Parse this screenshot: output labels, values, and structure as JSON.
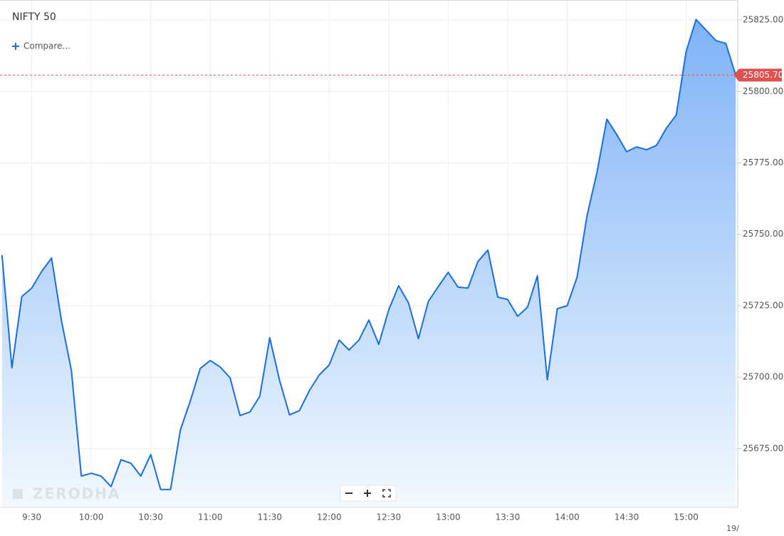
{
  "chart_data": {
    "type": "line",
    "title": "NIFTY 50",
    "compare_label": "Compare...",
    "watermark": "ZERODHA",
    "date_label": "19/",
    "series": [
      {
        "name": "NIFTY 50",
        "color": "#1a6fdb",
        "x": [
          555,
          560,
          565,
          570,
          575,
          580,
          585,
          590,
          595,
          600,
          605,
          610,
          615,
          620,
          625,
          630,
          635,
          640,
          645,
          650,
          655,
          660,
          665,
          670,
          675,
          680,
          685,
          690,
          695,
          700,
          705,
          710,
          715,
          720,
          725,
          730,
          735,
          740,
          745,
          750,
          755,
          760,
          765,
          770,
          775,
          780,
          785,
          790,
          795,
          800,
          805,
          810,
          815,
          820,
          825,
          830,
          835,
          840,
          845,
          850,
          855,
          860,
          865,
          870,
          875,
          880,
          885,
          890,
          895,
          900,
          905,
          910,
          915,
          920,
          925
        ],
        "values": [
          25742.7,
          25703.3,
          25728.2,
          25731.2,
          25737.0,
          25741.7,
          25719.8,
          25702.3,
          25665.4,
          25666.4,
          25665.4,
          25661.7,
          25671.1,
          25669.9,
          25665.4,
          25672.9,
          25660.7,
          25660.7,
          25681.6,
          25691.8,
          25703.1,
          25705.8,
          25703.6,
          25699.8,
          25686.6,
          25687.8,
          25693.3,
          25713.8,
          25698.8,
          25686.8,
          25688.3,
          25695.3,
          25700.8,
          25704.3,
          25713.0,
          25709.5,
          25713.0,
          25720.0,
          25711.5,
          25723.5,
          25732.0,
          25726.0,
          25713.5,
          25726.5,
          25731.7,
          25736.7,
          25731.5,
          25731.2,
          25740.5,
          25744.5,
          25728.0,
          25727.2,
          25721.3,
          25724.5,
          25735.5,
          25699.1,
          25724.0,
          25725.0,
          25735.0,
          25756.4,
          25771.6,
          25790.3,
          25784.9,
          25778.9,
          25780.6,
          25779.6,
          25781.1,
          25787.1,
          25791.8,
          25814.0,
          25825.2,
          25821.5,
          25817.8,
          25816.8,
          25805.7
        ]
      }
    ],
    "last_price": {
      "value": 25805.7,
      "label": "25805.70"
    },
    "xlim": [
      554,
      926
    ],
    "xticks": [
      {
        "value": 570,
        "label": "9:30"
      },
      {
        "value": 600,
        "label": "10:00"
      },
      {
        "value": 630,
        "label": "10:30"
      },
      {
        "value": 660,
        "label": "11:00"
      },
      {
        "value": 690,
        "label": "11:30"
      },
      {
        "value": 720,
        "label": "12:00"
      },
      {
        "value": 750,
        "label": "12:30"
      },
      {
        "value": 780,
        "label": "13:00"
      },
      {
        "value": 810,
        "label": "13:30"
      },
      {
        "value": 840,
        "label": "14:00"
      },
      {
        "value": 870,
        "label": "14:30"
      },
      {
        "value": 900,
        "label": "15:00"
      }
    ],
    "ylim": [
      25654.4,
      25832.0
    ],
    "yticks": [
      {
        "value": 25675,
        "label": "25675.00"
      },
      {
        "value": 25700,
        "label": "25700.00"
      },
      {
        "value": 25725,
        "label": "25725.00"
      },
      {
        "value": 25750,
        "label": "25750.00"
      },
      {
        "value": 25775,
        "label": "25775.00"
      },
      {
        "value": 25800,
        "label": "25800.00"
      },
      {
        "value": 25825,
        "label": "25825.00"
      }
    ],
    "grid": true
  }
}
